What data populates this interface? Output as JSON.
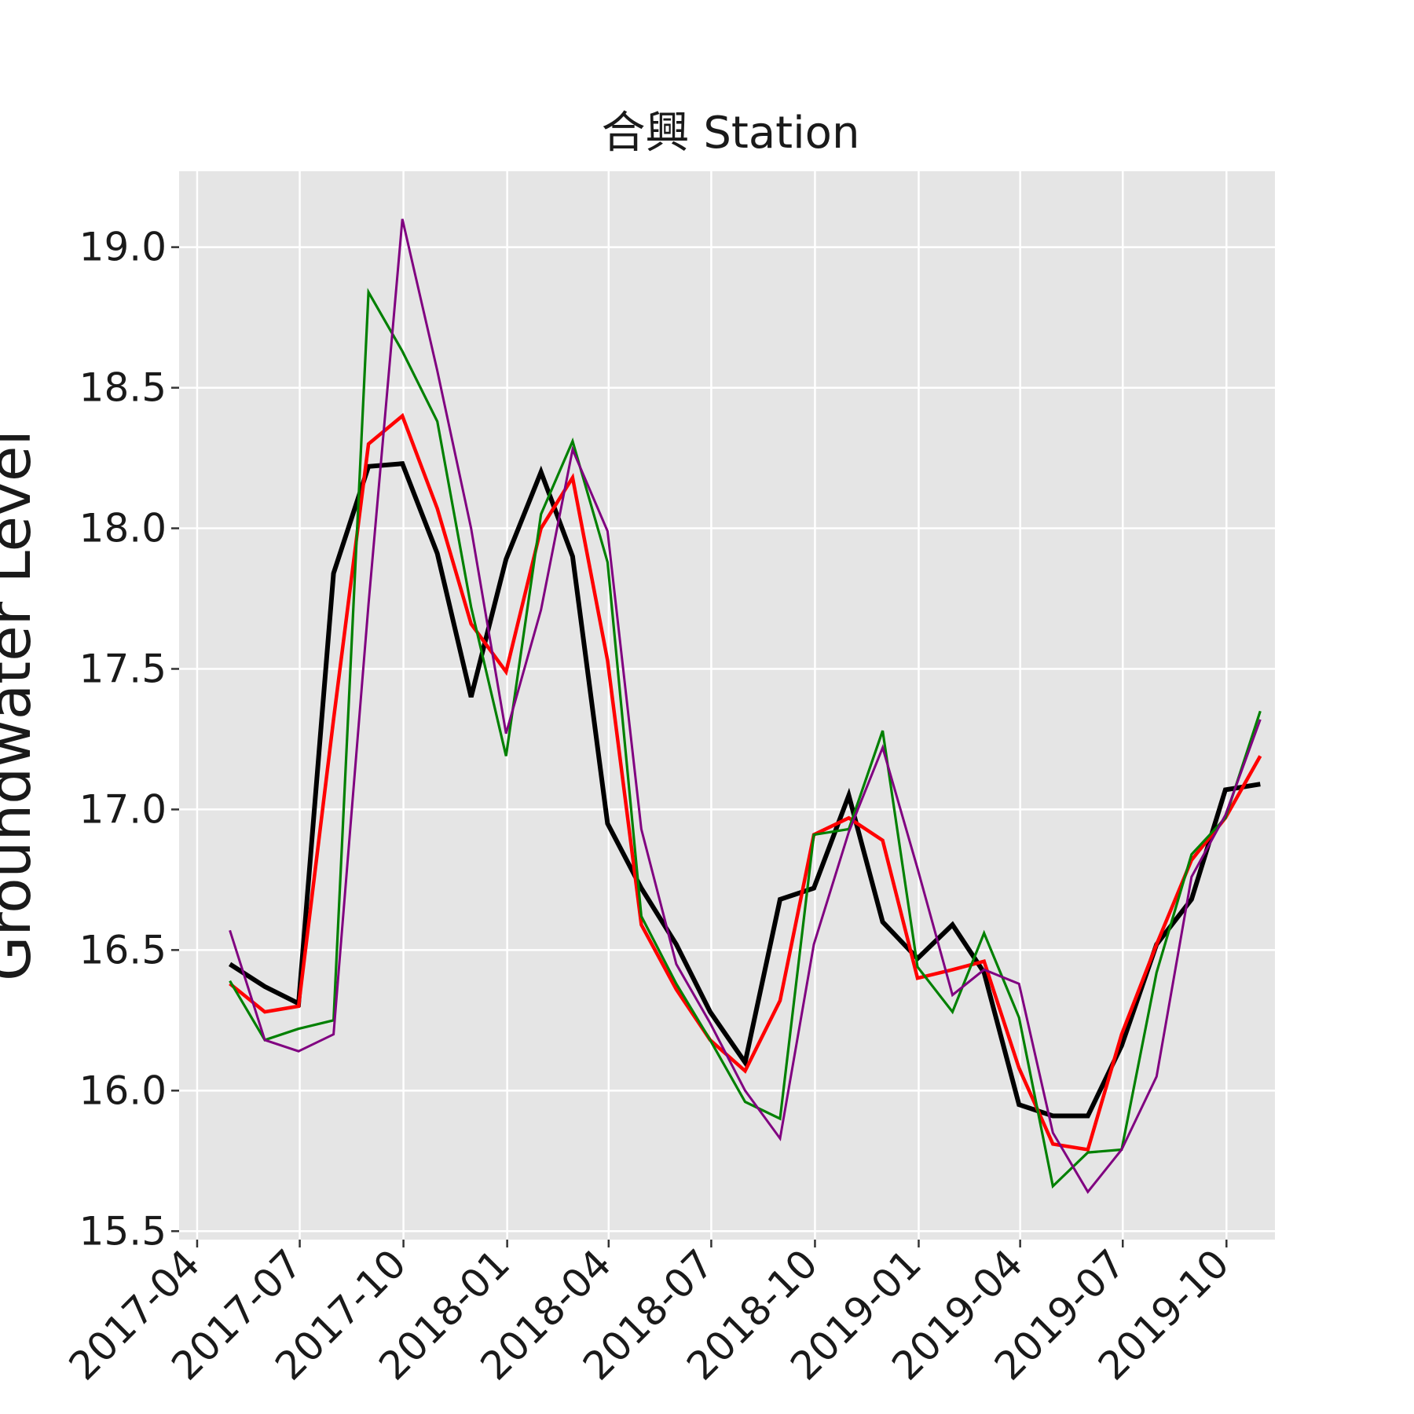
{
  "chart_data": {
    "type": "line",
    "title": "合興 Station",
    "xlabel": "",
    "ylabel": "Groundwater Level",
    "ylim": [
      15.47,
      19.27
    ],
    "xlim": [
      "2017-03-16",
      "2019-11-13"
    ],
    "grid": true,
    "yticks": [
      "15.5",
      "16.0",
      "16.5",
      "17.0",
      "17.5",
      "18.0",
      "18.5",
      "19.0"
    ],
    "xticks": [
      "2017-04",
      "2017-07",
      "2017-10",
      "2018-01",
      "2018-04",
      "2018-07",
      "2018-10",
      "2019-01",
      "2019-04",
      "2019-07",
      "2019-10"
    ],
    "x": [
      "2017-04-30",
      "2017-05-31",
      "2017-06-30",
      "2017-07-31",
      "2017-08-31",
      "2017-09-30",
      "2017-10-31",
      "2017-11-30",
      "2017-12-31",
      "2018-01-31",
      "2018-02-28",
      "2018-03-31",
      "2018-04-30",
      "2018-05-31",
      "2018-06-30",
      "2018-07-31",
      "2018-08-31",
      "2018-09-30",
      "2018-10-31",
      "2018-11-30",
      "2018-12-31",
      "2019-01-31",
      "2019-02-28",
      "2019-03-31",
      "2019-04-30",
      "2019-05-31",
      "2019-06-30",
      "2019-07-31",
      "2019-08-31",
      "2019-09-30",
      "2019-10-31"
    ],
    "series": [
      {
        "color": "#000000",
        "width": 6,
        "values": [
          16.45,
          16.37,
          16.31,
          17.84,
          18.22,
          18.23,
          17.91,
          17.4,
          17.89,
          18.2,
          17.9,
          16.95,
          16.72,
          16.52,
          16.28,
          16.1,
          16.68,
          16.72,
          17.05,
          16.6,
          16.47,
          16.59,
          16.42,
          15.95,
          15.91,
          15.91,
          16.16,
          16.52,
          16.68,
          17.07,
          17.09
        ]
      },
      {
        "color": "#ff0000",
        "width": 4.5,
        "values": [
          16.38,
          16.28,
          16.3,
          17.32,
          18.3,
          18.4,
          18.07,
          17.66,
          17.49,
          18.0,
          18.18,
          17.53,
          16.59,
          16.36,
          16.18,
          16.07,
          16.32,
          16.91,
          16.97,
          16.89,
          16.4,
          16.43,
          16.46,
          16.08,
          15.81,
          15.79,
          16.2,
          16.52,
          16.82,
          16.97,
          17.19
        ]
      },
      {
        "color": "#008000",
        "width": 3.2,
        "values": [
          16.39,
          16.18,
          16.22,
          16.25,
          18.84,
          18.63,
          18.38,
          17.72,
          17.19,
          18.05,
          18.31,
          17.88,
          16.62,
          16.38,
          16.18,
          15.96,
          15.9,
          16.91,
          16.93,
          17.28,
          16.44,
          16.28,
          16.56,
          16.26,
          15.66,
          15.78,
          15.79,
          16.42,
          16.84,
          16.97,
          17.35
        ]
      },
      {
        "color": "#800080",
        "width": 3,
        "values": [
          16.57,
          16.18,
          16.14,
          16.2,
          17.73,
          19.1,
          18.56,
          18.0,
          17.27,
          17.71,
          18.28,
          17.99,
          16.93,
          16.45,
          16.24,
          16.0,
          15.83,
          16.52,
          16.92,
          17.22,
          16.79,
          16.34,
          16.43,
          16.38,
          15.85,
          15.64,
          15.79,
          16.05,
          16.76,
          16.98,
          17.32
        ]
      }
    ]
  }
}
